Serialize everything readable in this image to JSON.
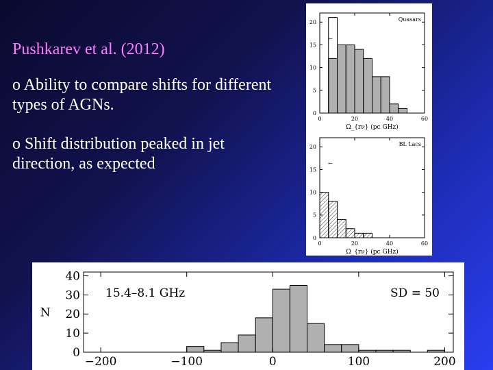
{
  "slide": {
    "title": "Pushkarev et al. (2012)",
    "bullet_1": "o Ability to compare shifts for different types of AGNs.",
    "bullet_2": "o Shift distribution peaked in jet direction, as expected"
  },
  "colors": {
    "background": "#1c2bb0",
    "title": "#ff7cff",
    "text": "#ffffff",
    "bar": "#b0b0b0"
  },
  "chart_data": [
    {
      "type": "bar",
      "title": "Quasars",
      "xlabel": "Ω_{rν} (pc GHz)",
      "ylabel": "",
      "xlim": [
        0,
        60
      ],
      "ylim": [
        0,
        22
      ],
      "xticks": [
        "0",
        "20",
        "40",
        "60"
      ],
      "yticks": [
        "0",
        "5",
        "10",
        "15",
        "20"
      ],
      "bins": [
        [
          5,
          10
        ],
        [
          10,
          15
        ],
        [
          15,
          20
        ],
        [
          20,
          25
        ],
        [
          25,
          30
        ],
        [
          30,
          35
        ],
        [
          35,
          40
        ],
        [
          40,
          45
        ],
        [
          45,
          50
        ]
      ],
      "values": [
        12,
        15,
        15,
        14,
        12,
        8,
        8,
        2,
        1
      ],
      "outline": {
        "bin": [
          5,
          10
        ],
        "value": 21
      },
      "arrow_label": "←"
    },
    {
      "type": "bar",
      "title": "BL Lacs",
      "xlabel": "Ω_{rν} (pc GHz)",
      "ylabel": "",
      "xlim": [
        0,
        60
      ],
      "ylim": [
        0,
        22
      ],
      "xticks": [
        "0",
        "20",
        "40",
        "60"
      ],
      "yticks": [
        "0",
        "5",
        "10",
        "15",
        "20"
      ],
      "bins": [
        [
          0,
          5
        ],
        [
          5,
          10
        ],
        [
          10,
          15
        ],
        [
          15,
          20
        ],
        [
          20,
          25
        ],
        [
          25,
          30
        ]
      ],
      "values": [
        10,
        8,
        4,
        2,
        1,
        1
      ],
      "hatched": true,
      "arrow_label": "←"
    },
    {
      "type": "bar",
      "title": "15.4–8.1 GHz",
      "annotation": "SD = 50",
      "xlabel": "",
      "ylabel": "N",
      "xlim": [
        -220,
        210
      ],
      "ylim": [
        0,
        42
      ],
      "xticks": [
        "−200",
        "−100",
        "0",
        "100",
        "200"
      ],
      "yticks": [
        "0",
        "10",
        "20",
        "30",
        "40"
      ],
      "bins": [
        [
          -100,
          -80
        ],
        [
          -80,
          -60
        ],
        [
          -60,
          -40
        ],
        [
          -40,
          -20
        ],
        [
          -20,
          0
        ],
        [
          0,
          20
        ],
        [
          20,
          40
        ],
        [
          40,
          60
        ],
        [
          60,
          80
        ],
        [
          80,
          100
        ],
        [
          100,
          120
        ],
        [
          120,
          140
        ],
        [
          140,
          160
        ],
        [
          160,
          180
        ],
        [
          180,
          200
        ]
      ],
      "values": [
        3,
        1,
        5,
        9,
        18,
        33,
        35,
        15,
        4,
        4,
        1,
        1,
        1,
        0,
        1
      ]
    }
  ]
}
